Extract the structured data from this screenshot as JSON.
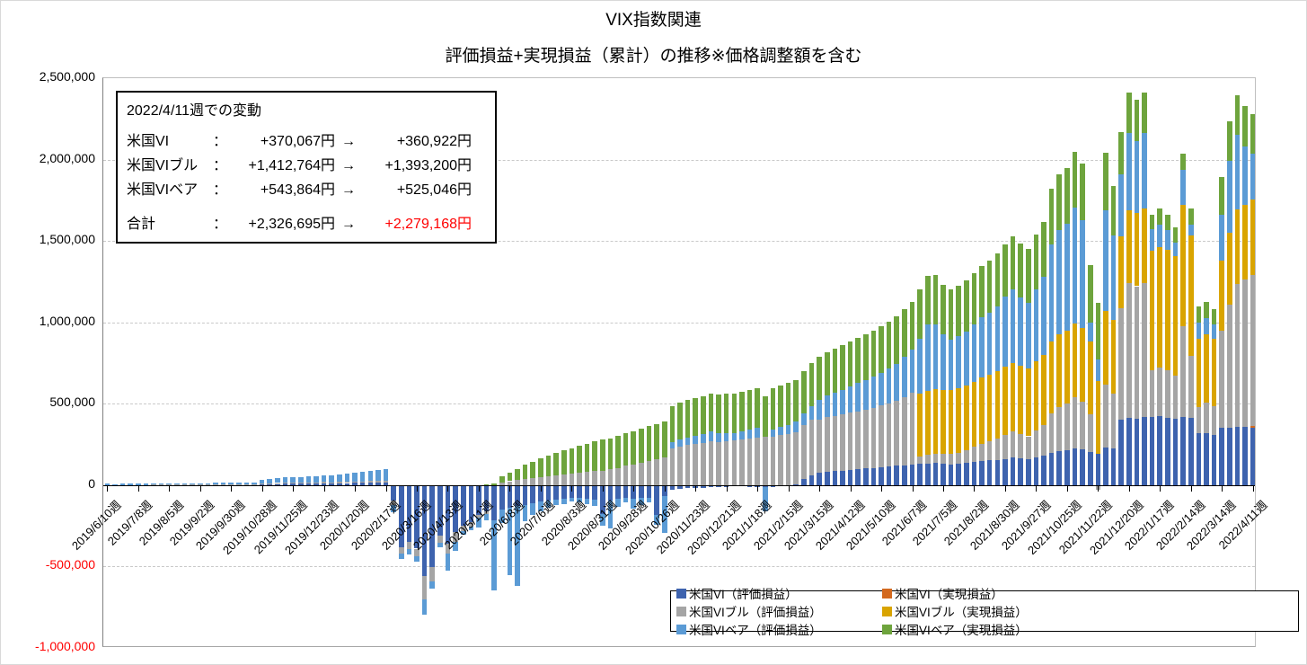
{
  "title": "VIX指数関連",
  "subtitle": "評価損益+実現損益（累計）の推移※価格調整額を含む",
  "annotation": {
    "heading": "2022/4/11週での変動",
    "arrow": "→",
    "rows": [
      {
        "label": "米国VI",
        "colon": "：",
        "before": "+370,067円",
        "after": "+360,922円",
        "after_red": false
      },
      {
        "label": "米国VIブル",
        "colon": "：",
        "before": "+1,412,764円",
        "after": "+1,393,200円",
        "after_red": false
      },
      {
        "label": "米国VIベア",
        "colon": "：",
        "before": "+543,864円",
        "after": "+525,046円",
        "after_red": false
      },
      {
        "label": "合計",
        "colon": "：",
        "before": "+2,326,695円",
        "after": "+2,279,168円",
        "after_red": true,
        "total": true
      }
    ]
  },
  "legend": {
    "items": [
      {
        "label": "米国VI（評価損益）",
        "color": "#3E63AE"
      },
      {
        "label": "米国VI（実現損益）",
        "color": "#D3691E"
      },
      {
        "label": "米国VIブル（評価損益）",
        "color": "#A5A5A5"
      },
      {
        "label": "米国VIブル（実現損益）",
        "color": "#D9A400"
      },
      {
        "label": "米国VIベア（評価損益）",
        "color": "#5B9BD5"
      },
      {
        "label": "米国VIベア（実現損益）",
        "color": "#6EA43D"
      }
    ]
  },
  "chart_data": {
    "type": "bar",
    "stacked": true,
    "unit": "JPY",
    "values_in": "thousands of JPY",
    "n_points": 149,
    "ylim": [
      -1000000,
      2500000
    ],
    "ytick_interval": 500000,
    "yticks": [
      {
        "value": 2500,
        "label": "2,500,000",
        "red": false
      },
      {
        "value": 2000,
        "label": "2,000,000",
        "red": false
      },
      {
        "value": 1500,
        "label": "1,500,000",
        "red": false
      },
      {
        "value": 1000,
        "label": "1,000,000",
        "red": false
      },
      {
        "value": 500,
        "label": "500,000",
        "red": false
      },
      {
        "value": 0,
        "label": "0",
        "red": false
      },
      {
        "value": -500,
        "label": "-500,000",
        "red": true
      },
      {
        "value": -1000,
        "label": "-1,000,000",
        "red": true
      }
    ],
    "x_label_every": 4,
    "x_labels": [
      "2019/6/10週",
      "2019/7/8週",
      "2019/8/5週",
      "2019/9/2週",
      "2019/9/30週",
      "2019/10/28週",
      "2019/11/25週",
      "2019/12/23週",
      "2020/1/20週",
      "2020/2/17週",
      "2020/3/16週",
      "2020/4/13週",
      "2020/5/11週",
      "2020/6/8週",
      "2020/7/6週",
      "2020/8/3週",
      "2020/8/31週",
      "2020/9/28週",
      "2020/10/26週",
      "2020/11/23週",
      "2020/12/21週",
      "2021/1/18週",
      "2021/2/15週",
      "2021/3/15週",
      "2021/4/12週",
      "2021/5/10週",
      "2021/6/7週",
      "2021/7/5週",
      "2021/8/2週",
      "2021/8/30週",
      "2021/9/27週",
      "2021/10/25週",
      "2021/11/22週",
      "2021/12/20週",
      "2022/1/17週",
      "2022/2/14週",
      "2022/3/14週",
      "2022/4/11週"
    ],
    "legend_position": "bottom-right",
    "grid": "dashed horizontal every 500,000",
    "series": [
      {
        "name": "米国VI（評価損益）",
        "color": "#3E63AE",
        "values": [
          -4,
          -3,
          -4,
          -5,
          -4,
          -3,
          -4,
          -5,
          -5,
          -4,
          -4,
          -5,
          -5,
          -4,
          -5,
          -5,
          -6,
          -5,
          -5,
          -6,
          6,
          7,
          8,
          9,
          10,
          9,
          10,
          11,
          12,
          11,
          12,
          13,
          14,
          15,
          16,
          17,
          18,
          -95,
          -380,
          -350,
          -390,
          -560,
          -505,
          -310,
          -360,
          -290,
          -250,
          -228,
          -182,
          -162,
          -215,
          -150,
          -140,
          -130,
          -120,
          -112,
          -102,
          -95,
          -90,
          -85,
          -80,
          -80,
          -86,
          -90,
          -180,
          -95,
          -85,
          -78,
          -86,
          -80,
          -76,
          -185,
          -65,
          -26,
          -22,
          -18,
          -16,
          -15,
          -12,
          -10,
          -10,
          -8,
          -8,
          -10,
          -12,
          -12,
          -10,
          -8,
          -6,
          5,
          40,
          62,
          75,
          82,
          86,
          90,
          94,
          98,
          102,
          106,
          110,
          114,
          118,
          122,
          126,
          130,
          134,
          136,
          130,
          126,
          130,
          136,
          142,
          148,
          152,
          156,
          162,
          168,
          164,
          160,
          170,
          180,
          200,
          210,
          215,
          225,
          220,
          205,
          195,
          230,
          225,
          400,
          415,
          410,
          420,
          420,
          422,
          415,
          408,
          418,
          412,
          320,
          322,
          310,
          350,
          352,
          358,
          356,
          355
        ]
      },
      {
        "name": "米国VI（実現損益）",
        "color": "#D3691E",
        "values": [
          0,
          0,
          0,
          0,
          0,
          0,
          0,
          0,
          0,
          0,
          0,
          0,
          0,
          0,
          0,
          0,
          0,
          0,
          0,
          0,
          0,
          0,
          0,
          0,
          0,
          0,
          0,
          0,
          0,
          0,
          0,
          0,
          0,
          0,
          0,
          0,
          0,
          0,
          0,
          0,
          0,
          0,
          0,
          0,
          0,
          0,
          0,
          0,
          0,
          0,
          0,
          0,
          0,
          0,
          0,
          0,
          0,
          0,
          0,
          0,
          0,
          0,
          0,
          0,
          0,
          0,
          0,
          0,
          0,
          0,
          0,
          0,
          0,
          0,
          0,
          0,
          0,
          0,
          0,
          0,
          0,
          0,
          0,
          0,
          0,
          0,
          0,
          0,
          0,
          0,
          0,
          0,
          0,
          0,
          0,
          0,
          0,
          0,
          0,
          0,
          0,
          0,
          0,
          0,
          0,
          0,
          0,
          0,
          0,
          0,
          0,
          0,
          0,
          0,
          0,
          0,
          0,
          0,
          0,
          0,
          0,
          0,
          0,
          0,
          0,
          0,
          0,
          0,
          0,
          0,
          0,
          0,
          0,
          0,
          0,
          0,
          0,
          0,
          0,
          0,
          0,
          0,
          0,
          0,
          0,
          0,
          0,
          0,
          6
        ]
      },
      {
        "name": "米国VIブル（評価損益）",
        "color": "#A5A5A5",
        "values": [
          1,
          1,
          1,
          1,
          1,
          1,
          2,
          2,
          2,
          2,
          2,
          2,
          2,
          2,
          3,
          3,
          3,
          3,
          3,
          3,
          4,
          4,
          5,
          5,
          5,
          6,
          6,
          6,
          7,
          7,
          7,
          8,
          8,
          9,
          9,
          10,
          10,
          -25,
          -40,
          -45,
          -45,
          -140,
          -85,
          -42,
          -62,
          -58,
          -30,
          -26,
          -20,
          -15,
          0,
          18,
          24,
          30,
          40,
          45,
          50,
          55,
          60,
          65,
          70,
          76,
          80,
          85,
          90,
          96,
          106,
          120,
          128,
          138,
          148,
          160,
          172,
          228,
          238,
          248,
          254,
          260,
          270,
          262,
          270,
          276,
          281,
          286,
          292,
          295,
          300,
          308,
          315,
          322,
          330,
          340,
          328,
          335,
          340,
          345,
          350,
          356,
          362,
          370,
          378,
          388,
          400,
          418,
          440,
          45,
          52,
          56,
          60,
          64,
          70,
          80,
          92,
          106,
          118,
          130,
          146,
          160,
          150,
          140,
          165,
          190,
          240,
          270,
          285,
          315,
          295,
          230,
          -30,
          390,
          340,
          688,
          825,
          812,
          822,
          286,
          300,
          290,
          262,
          560,
          380,
          160,
          185,
          175,
          600,
          756,
          880,
          905,
          930
        ]
      },
      {
        "name": "米国VIブル（実現損益）",
        "color": "#D9A400",
        "values": [
          0,
          0,
          0,
          0,
          0,
          0,
          0,
          0,
          0,
          0,
          0,
          0,
          0,
          0,
          0,
          0,
          0,
          0,
          0,
          0,
          0,
          0,
          0,
          0,
          0,
          0,
          0,
          0,
          0,
          0,
          0,
          0,
          0,
          0,
          0,
          0,
          0,
          0,
          0,
          0,
          0,
          0,
          0,
          0,
          0,
          0,
          0,
          0,
          0,
          0,
          0,
          0,
          0,
          0,
          0,
          0,
          0,
          0,
          0,
          0,
          0,
          0,
          0,
          0,
          0,
          0,
          0,
          0,
          0,
          0,
          0,
          0,
          0,
          0,
          0,
          0,
          0,
          0,
          0,
          0,
          0,
          0,
          0,
          0,
          0,
          0,
          0,
          0,
          0,
          0,
          0,
          0,
          0,
          0,
          0,
          0,
          0,
          0,
          0,
          0,
          0,
          0,
          0,
          0,
          0,
          390,
          394,
          396,
          394,
          392,
          394,
          398,
          402,
          406,
          410,
          414,
          418,
          422,
          420,
          418,
          424,
          430,
          440,
          445,
          448,
          452,
          450,
          445,
          445,
          450,
          448,
          440,
          450,
          450,
          455,
          736,
          740,
          738,
          736,
          742,
          740,
          420,
          420,
          415,
          430,
          445,
          455,
          460,
          463
        ]
      },
      {
        "name": "米国VIベア（評価損益）",
        "color": "#5B9BD5",
        "values": [
          7,
          6,
          8,
          9,
          8,
          7,
          9,
          10,
          9,
          8,
          9,
          10,
          11,
          10,
          11,
          12,
          13,
          12,
          13,
          14,
          22,
          26,
          29,
          33,
          36,
          35,
          38,
          40,
          43,
          42,
          45,
          49,
          52,
          56,
          61,
          66,
          69,
          -48,
          -32,
          -30,
          -37,
          -95,
          -45,
          -30,
          -103,
          -55,
          -22,
          -24,
          -58,
          -40,
          -430,
          -80,
          -412,
          -488,
          -100,
          -70,
          -60,
          -45,
          -35,
          -30,
          -20,
          -26,
          -30,
          -36,
          -70,
          -170,
          -46,
          -30,
          -60,
          -42,
          -30,
          -60,
          -230,
          34,
          42,
          46,
          50,
          56,
          60,
          55,
          52,
          46,
          50,
          55,
          58,
          -150,
          44,
          50,
          56,
          62,
          72,
          84,
          120,
          132,
          142,
          152,
          162,
          172,
          182,
          192,
          202,
          214,
          228,
          248,
          268,
          335,
          405,
          400,
          340,
          310,
          320,
          330,
          350,
          370,
          380,
          400,
          430,
          450,
          420,
          400,
          445,
          478,
          600,
          643,
          658,
          712,
          662,
          120,
          130,
          618,
          523,
          380,
          473,
          444,
          468,
          129,
          140,
          124,
          83,
          216,
          70,
          100,
          98,
          85,
          280,
          437,
          457,
          362,
          282
        ]
      },
      {
        "name": "米国VIベア（実現損益）",
        "color": "#6EA43D",
        "values": [
          0,
          0,
          0,
          0,
          0,
          0,
          0,
          0,
          0,
          0,
          0,
          0,
          0,
          0,
          0,
          0,
          0,
          0,
          0,
          0,
          0,
          0,
          0,
          0,
          0,
          0,
          0,
          0,
          0,
          0,
          0,
          0,
          0,
          0,
          0,
          0,
          0,
          0,
          0,
          0,
          0,
          0,
          0,
          0,
          0,
          0,
          0,
          0,
          0,
          5,
          12,
          38,
          55,
          70,
          85,
          100,
          115,
          128,
          140,
          150,
          156,
          164,
          172,
          182,
          190,
          193,
          197,
          202,
          205,
          209,
          213,
          216,
          219,
          222,
          225,
          228,
          230,
          232,
          235,
          238,
          240,
          242,
          244,
          246,
          248,
          250,
          252,
          254,
          256,
          258,
          260,
          262,
          265,
          268,
          270,
          272,
          275,
          278,
          280,
          282,
          285,
          288,
          290,
          292,
          294,
          300,
          302,
          304,
          306,
          308,
          310,
          312,
          315,
          318,
          320,
          322,
          325,
          328,
          330,
          332,
          335,
          337,
          340,
          342,
          344,
          346,
          348,
          350,
          350,
          352,
          300,
          260,
          250,
          250,
          248,
          92,
          98,
          96,
          96,
          98,
          98,
          100,
          100,
          98,
          233,
          243,
          245,
          245,
          243
        ]
      }
    ]
  }
}
